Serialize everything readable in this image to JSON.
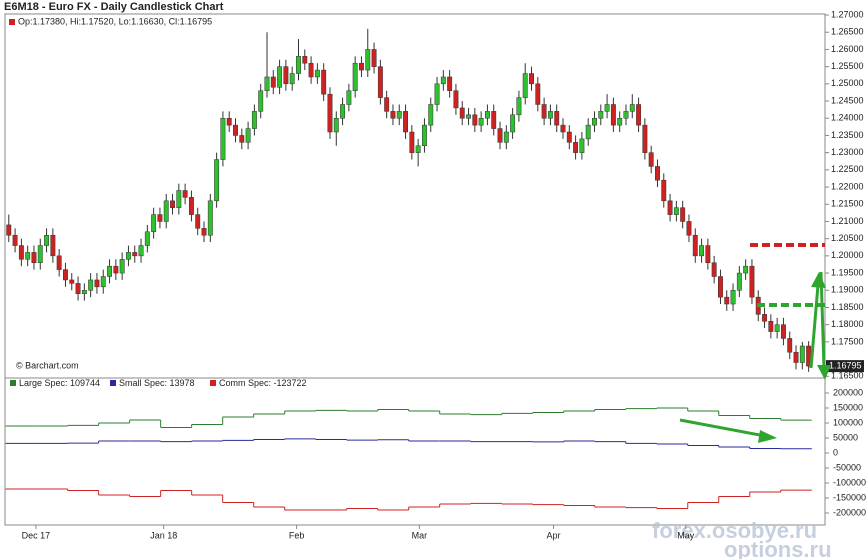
{
  "chart_data": [
    {
      "type": "candlestick",
      "title": "E6M18 - Euro FX - Daily Candlestick Chart",
      "info": "Op:1.17380, Hi:1.17520, Lo:1.16630, Cl:1.16795",
      "source": "© Barchart.com",
      "last_price_label": "1.16795",
      "up_color": "#2fc02f",
      "down_color": "#cc2222",
      "xlim": [
        -0.6,
        129.6
      ],
      "xticks": [
        {
          "value": 4.3,
          "label": "Dec 17"
        },
        {
          "value": 24.6,
          "label": "Jan 18"
        },
        {
          "value": 45.7,
          "label": "Feb"
        },
        {
          "value": 65.2,
          "label": "Mar"
        },
        {
          "value": 86.5,
          "label": "Apr"
        },
        {
          "value": 107.5,
          "label": "May"
        }
      ],
      "ylim": [
        1.1645,
        1.2703
      ],
      "yticks": [
        {
          "value": 1.27,
          "label": "1.27000"
        },
        {
          "value": 1.265,
          "label": "1.26500"
        },
        {
          "value": 1.26,
          "label": "1.26000"
        },
        {
          "value": 1.255,
          "label": "1.25500"
        },
        {
          "value": 1.25,
          "label": "1.25000"
        },
        {
          "value": 1.245,
          "label": "1.24500"
        },
        {
          "value": 1.24,
          "label": "1.24000"
        },
        {
          "value": 1.235,
          "label": "1.23500"
        },
        {
          "value": 1.23,
          "label": "1.23000"
        },
        {
          "value": 1.225,
          "label": "1.22500"
        },
        {
          "value": 1.22,
          "label": "1.22000"
        },
        {
          "value": 1.215,
          "label": "1.21500"
        },
        {
          "value": 1.21,
          "label": "1.21000"
        },
        {
          "value": 1.205,
          "label": "1.20500"
        },
        {
          "value": 1.2,
          "label": "1.20000"
        },
        {
          "value": 1.195,
          "label": "1.19500"
        },
        {
          "value": 1.19,
          "label": "1.19000"
        },
        {
          "value": 1.185,
          "label": "1.18500"
        },
        {
          "value": 1.18,
          "label": "1.18000"
        },
        {
          "value": 1.175,
          "label": "1.17500"
        },
        {
          "value": 1.165,
          "label": "1.16500"
        }
      ],
      "ohlc": [
        [
          1.209,
          1.212,
          1.204,
          1.206
        ],
        [
          1.206,
          1.208,
          1.201,
          1.203
        ],
        [
          1.203,
          1.205,
          1.197,
          1.199
        ],
        [
          1.199,
          1.203,
          1.197,
          1.201
        ],
        [
          1.201,
          1.203,
          1.196,
          1.198
        ],
        [
          1.198,
          1.205,
          1.196,
          1.203
        ],
        [
          1.203,
          1.208,
          1.201,
          1.206
        ],
        [
          1.206,
          1.208,
          1.198,
          1.2
        ],
        [
          1.2,
          1.202,
          1.194,
          1.196
        ],
        [
          1.196,
          1.198,
          1.191,
          1.193
        ],
        [
          1.193,
          1.195,
          1.19,
          1.192
        ],
        [
          1.192,
          1.194,
          1.187,
          1.189
        ],
        [
          1.189,
          1.192,
          1.187,
          1.19
        ],
        [
          1.19,
          1.195,
          1.188,
          1.193
        ],
        [
          1.193,
          1.195,
          1.189,
          1.191
        ],
        [
          1.191,
          1.196,
          1.189,
          1.194
        ],
        [
          1.194,
          1.199,
          1.192,
          1.197
        ],
        [
          1.197,
          1.199,
          1.193,
          1.195
        ],
        [
          1.195,
          1.201,
          1.193,
          1.199
        ],
        [
          1.199,
          1.203,
          1.197,
          1.201
        ],
        [
          1.201,
          1.203,
          1.198,
          1.2
        ],
        [
          1.2,
          1.205,
          1.198,
          1.203
        ],
        [
          1.203,
          1.209,
          1.201,
          1.207
        ],
        [
          1.207,
          1.214,
          1.205,
          1.212
        ],
        [
          1.212,
          1.214,
          1.208,
          1.21
        ],
        [
          1.21,
          1.218,
          1.208,
          1.216
        ],
        [
          1.216,
          1.218,
          1.212,
          1.214
        ],
        [
          1.214,
          1.221,
          1.212,
          1.219
        ],
        [
          1.219,
          1.221,
          1.215,
          1.217
        ],
        [
          1.217,
          1.219,
          1.21,
          1.212
        ],
        [
          1.212,
          1.214,
          1.206,
          1.208
        ],
        [
          1.208,
          1.21,
          1.204,
          1.206
        ],
        [
          1.206,
          1.218,
          1.204,
          1.216
        ],
        [
          1.216,
          1.23,
          1.214,
          1.228
        ],
        [
          1.228,
          1.242,
          1.226,
          1.24
        ],
        [
          1.24,
          1.242,
          1.236,
          1.238
        ],
        [
          1.238,
          1.24,
          1.233,
          1.235
        ],
        [
          1.235,
          1.237,
          1.231,
          1.233
        ],
        [
          1.233,
          1.239,
          1.231,
          1.237
        ],
        [
          1.237,
          1.244,
          1.235,
          1.242
        ],
        [
          1.242,
          1.25,
          1.24,
          1.248
        ],
        [
          1.248,
          1.265,
          1.246,
          1.252
        ],
        [
          1.252,
          1.254,
          1.247,
          1.249
        ],
        [
          1.249,
          1.257,
          1.247,
          1.255
        ],
        [
          1.255,
          1.257,
          1.248,
          1.25
        ],
        [
          1.25,
          1.255,
          1.248,
          1.253
        ],
        [
          1.253,
          1.263,
          1.251,
          1.258
        ],
        [
          1.258,
          1.26,
          1.254,
          1.256
        ],
        [
          1.256,
          1.258,
          1.25,
          1.252
        ],
        [
          1.252,
          1.256,
          1.25,
          1.254
        ],
        [
          1.254,
          1.256,
          1.245,
          1.247
        ],
        [
          1.247,
          1.249,
          1.234,
          1.236
        ],
        [
          1.236,
          1.242,
          1.232,
          1.24
        ],
        [
          1.24,
          1.246,
          1.238,
          1.244
        ],
        [
          1.244,
          1.25,
          1.242,
          1.248
        ],
        [
          1.248,
          1.258,
          1.246,
          1.256
        ],
        [
          1.256,
          1.258,
          1.252,
          1.254
        ],
        [
          1.254,
          1.266,
          1.252,
          1.26
        ],
        [
          1.26,
          1.262,
          1.253,
          1.255
        ],
        [
          1.255,
          1.257,
          1.244,
          1.246
        ],
        [
          1.246,
          1.248,
          1.24,
          1.242
        ],
        [
          1.242,
          1.244,
          1.238,
          1.24
        ],
        [
          1.24,
          1.244,
          1.238,
          1.242
        ],
        [
          1.242,
          1.244,
          1.234,
          1.236
        ],
        [
          1.236,
          1.238,
          1.228,
          1.23
        ],
        [
          1.23,
          1.234,
          1.226,
          1.232
        ],
        [
          1.232,
          1.24,
          1.23,
          1.238
        ],
        [
          1.238,
          1.246,
          1.236,
          1.244
        ],
        [
          1.244,
          1.252,
          1.242,
          1.25
        ],
        [
          1.25,
          1.254,
          1.248,
          1.252
        ],
        [
          1.252,
          1.254,
          1.246,
          1.248
        ],
        [
          1.248,
          1.25,
          1.241,
          1.243
        ],
        [
          1.243,
          1.245,
          1.238,
          1.24
        ],
        [
          1.24,
          1.243,
          1.238,
          1.241
        ],
        [
          1.241,
          1.243,
          1.236,
          1.238
        ],
        [
          1.238,
          1.242,
          1.236,
          1.24
        ],
        [
          1.24,
          1.244,
          1.238,
          1.242
        ],
        [
          1.242,
          1.244,
          1.235,
          1.237
        ],
        [
          1.237,
          1.239,
          1.231,
          1.233
        ],
        [
          1.233,
          1.238,
          1.231,
          1.236
        ],
        [
          1.236,
          1.243,
          1.234,
          1.241
        ],
        [
          1.241,
          1.248,
          1.239,
          1.246
        ],
        [
          1.246,
          1.256,
          1.244,
          1.253
        ],
        [
          1.253,
          1.255,
          1.248,
          1.25
        ],
        [
          1.25,
          1.252,
          1.242,
          1.244
        ],
        [
          1.244,
          1.246,
          1.238,
          1.24
        ],
        [
          1.24,
          1.244,
          1.238,
          1.242
        ],
        [
          1.242,
          1.244,
          1.236,
          1.238
        ],
        [
          1.238,
          1.24,
          1.234,
          1.236
        ],
        [
          1.236,
          1.238,
          1.231,
          1.233
        ],
        [
          1.233,
          1.235,
          1.228,
          1.23
        ],
        [
          1.23,
          1.236,
          1.228,
          1.234
        ],
        [
          1.234,
          1.24,
          1.232,
          1.238
        ],
        [
          1.238,
          1.242,
          1.236,
          1.24
        ],
        [
          1.24,
          1.244,
          1.238,
          1.242
        ],
        [
          1.242,
          1.247,
          1.24,
          1.244
        ],
        [
          1.244,
          1.246,
          1.236,
          1.238
        ],
        [
          1.238,
          1.242,
          1.236,
          1.24
        ],
        [
          1.24,
          1.244,
          1.238,
          1.242
        ],
        [
          1.242,
          1.247,
          1.24,
          1.244
        ],
        [
          1.244,
          1.246,
          1.236,
          1.238
        ],
        [
          1.238,
          1.24,
          1.228,
          1.23
        ],
        [
          1.23,
          1.232,
          1.224,
          1.226
        ],
        [
          1.226,
          1.228,
          1.22,
          1.222
        ],
        [
          1.222,
          1.224,
          1.214,
          1.216
        ],
        [
          1.216,
          1.218,
          1.21,
          1.212
        ],
        [
          1.212,
          1.216,
          1.21,
          1.214
        ],
        [
          1.214,
          1.216,
          1.208,
          1.21
        ],
        [
          1.21,
          1.212,
          1.204,
          1.206
        ],
        [
          1.206,
          1.208,
          1.198,
          1.2
        ],
        [
          1.2,
          1.205,
          1.198,
          1.203
        ],
        [
          1.203,
          1.205,
          1.196,
          1.198
        ],
        [
          1.198,
          1.2,
          1.192,
          1.194
        ],
        [
          1.194,
          1.196,
          1.186,
          1.188
        ],
        [
          1.188,
          1.19,
          1.184,
          1.186
        ],
        [
          1.186,
          1.192,
          1.184,
          1.19
        ],
        [
          1.19,
          1.197,
          1.188,
          1.195
        ],
        [
          1.195,
          1.199,
          1.193,
          1.197
        ],
        [
          1.197,
          1.199,
          1.186,
          1.188
        ],
        [
          1.188,
          1.19,
          1.181,
          1.183
        ],
        [
          1.183,
          1.185,
          1.179,
          1.181
        ],
        [
          1.181,
          1.183,
          1.176,
          1.178
        ],
        [
          1.178,
          1.182,
          1.176,
          1.18
        ],
        [
          1.18,
          1.182,
          1.174,
          1.176
        ],
        [
          1.176,
          1.178,
          1.17,
          1.172
        ],
        [
          1.172,
          1.174,
          1.167,
          1.169
        ],
        [
          1.169,
          1.175,
          1.167,
          1.1738
        ],
        [
          1.1738,
          1.1752,
          1.1663,
          1.16795
        ]
      ]
    },
    {
      "type": "step",
      "ylim": [
        -240000,
        250000
      ],
      "yticks": [
        200000,
        150000,
        100000,
        50000,
        0,
        -50000,
        -100000,
        -150000,
        -200000
      ],
      "series": [
        {
          "name": "Large Spec: 109744",
          "color": "#2e7d2e",
          "values": [
            90000,
            90000,
            92000,
            100000,
            110000,
            85000,
            95000,
            120000,
            130000,
            140000,
            142000,
            140000,
            145000,
            140000,
            130000,
            128000,
            132000,
            135000,
            140000,
            145000,
            148000,
            150000,
            140000,
            125000,
            115000,
            109744
          ]
        },
        {
          "name": "Small Spec: 13978",
          "color": "#2a2a9a",
          "values": [
            32000,
            32000,
            33000,
            40000,
            40000,
            38000,
            40000,
            42000,
            45000,
            47000,
            45000,
            43000,
            44000,
            40000,
            40000,
            38000,
            38000,
            37000,
            40000,
            38000,
            32000,
            30000,
            25000,
            20000,
            15000,
            13978
          ]
        },
        {
          "name": "Comm Spec: -123722",
          "color": "#cc2222",
          "values": [
            -120000,
            -120000,
            -125000,
            -140000,
            -145000,
            -125000,
            -140000,
            -165000,
            -180000,
            -190000,
            -190000,
            -185000,
            -190000,
            -180000,
            -170000,
            -168000,
            -170000,
            -172000,
            -175000,
            -180000,
            -182000,
            -185000,
            -165000,
            -145000,
            -130000,
            -123722
          ]
        }
      ]
    }
  ],
  "watermarks": [
    "forex.osobye.ru",
    "options.ru"
  ]
}
